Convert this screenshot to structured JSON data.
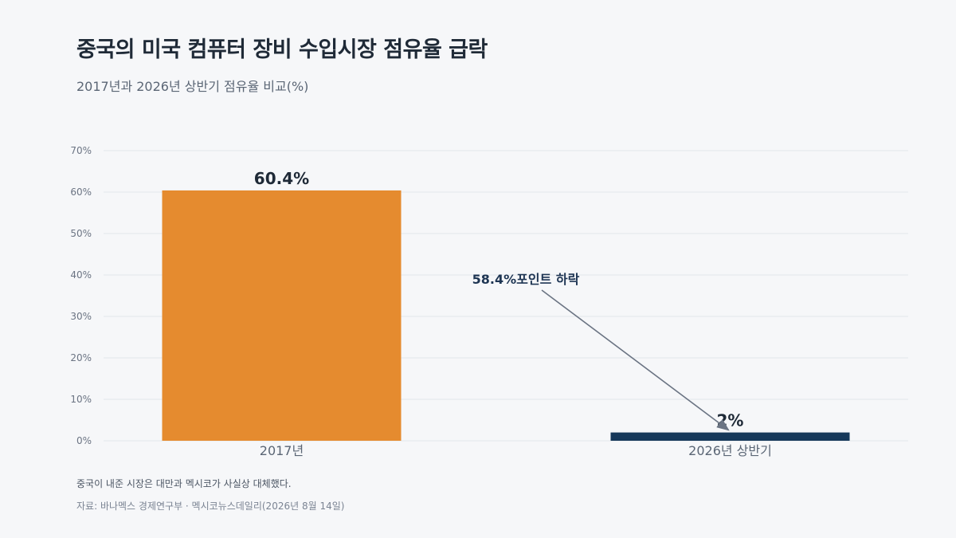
{
  "header": {
    "title": "중국의 미국 컴퓨터 장비 수입시장 점유율 급락",
    "subtitle": "2017년과 2026년 상반기 점유율 비교(%)"
  },
  "chart_data": {
    "type": "bar",
    "categories": [
      "2017년",
      "2026년 상반기"
    ],
    "values": [
      60.4,
      2
    ],
    "data_labels": [
      "60.4%",
      "2%"
    ],
    "colors": [
      "#e58b2f",
      "#16385a"
    ],
    "ylim": [
      0,
      70
    ],
    "yticks": [
      0,
      10,
      20,
      30,
      40,
      50,
      60,
      70
    ],
    "ytick_labels": [
      "0%",
      "10%",
      "20%",
      "30%",
      "40%",
      "50%",
      "60%",
      "70%"
    ],
    "grid": true,
    "annotation": {
      "text": "58.4%포인트 하락",
      "from_category": 0,
      "to_category": 1
    }
  },
  "footer": {
    "note": "중국이 내준 시장은 대만과 멕시코가 사실상 대체했다.",
    "source": "자료: 바나멕스 경제연구부 · 멕시코뉴스데일리(2026년 8월 14일)"
  }
}
